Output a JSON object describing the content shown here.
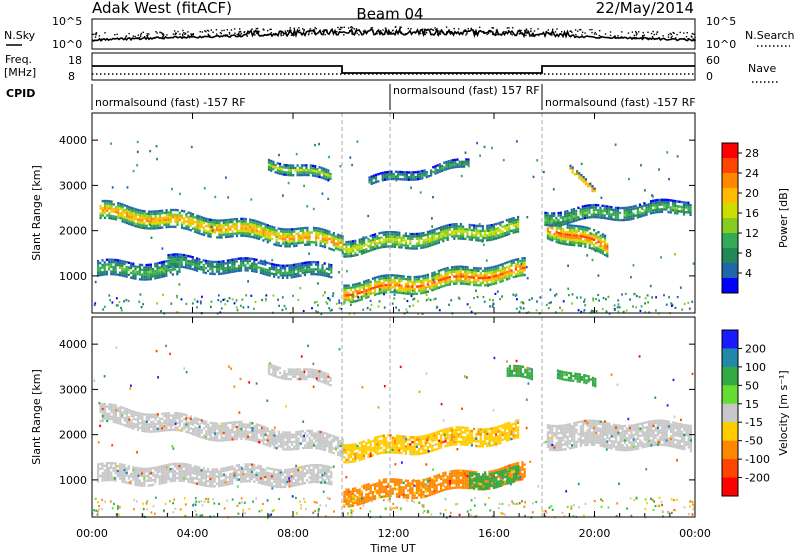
{
  "header": {
    "left": "Adak West (fitACF)",
    "center": "Beam 04",
    "right": "22/May/2014"
  },
  "noise_panel": {
    "left_label": "N.Sky",
    "right_label": "N.Search",
    "left_ticks": [
      "10^5",
      "10^0"
    ],
    "right_ticks": [
      "10^5",
      "10^0"
    ]
  },
  "freq_panel": {
    "left_label_1": "Freq.",
    "left_label_2": "[MHz]",
    "right_label": "Nave",
    "left_ticks": [
      "18",
      "8"
    ],
    "right_ticks": [
      "60",
      "0"
    ]
  },
  "cpid_panel": {
    "label": "CPID",
    "segments": [
      "normalsound (fast) -157 RF",
      "normalsound (fast) 157 RF",
      "normalsound (fast) -157 RF"
    ]
  },
  "x_axis": {
    "ticks": [
      "00:00",
      "04:00",
      "08:00",
      "12:00",
      "16:00",
      "20:00",
      "00:00"
    ],
    "label": "Time UT"
  },
  "power_colorbar": {
    "label": "Power [dB]",
    "ticks": [
      "28",
      "24",
      "20",
      "16",
      "12",
      "8",
      "4"
    ],
    "colors": [
      "#ff0000",
      "#ff4400",
      "#ff8800",
      "#ffbb00",
      "#ccdd00",
      "#88cc22",
      "#33aa55",
      "#228855",
      "#2266aa",
      "#0000ff"
    ]
  },
  "velocity_colorbar": {
    "label": "Velocity [m s⁻¹]",
    "ticks": [
      "200",
      "100",
      "50",
      "15",
      "-15",
      "-50",
      "-100",
      "-200"
    ],
    "colors": [
      "#1a1aff",
      "#2288aa",
      "#33aa44",
      "#66dd33",
      "#c8c8c8",
      "#ffcc00",
      "#ff8800",
      "#ff4400",
      "#ff0000"
    ]
  },
  "chart_data": [
    {
      "type": "heatmap",
      "panel": "power",
      "xlabel": "Time UT",
      "ylabel": "Slant Range [km]",
      "xlim_hours": [
        0,
        24
      ],
      "ylim": [
        180,
        4600
      ],
      "yticks": [
        1000,
        2000,
        3000,
        4000
      ],
      "colorbar_range": [
        0,
        30
      ],
      "bands": [
        {
          "t0": 0.3,
          "t1": 10.0,
          "r_start": 2450,
          "r_end": 1750,
          "width": 380,
          "peak": 24
        },
        {
          "t0": 0.2,
          "t1": 3.5,
          "r_start": 1150,
          "r_end": 1150,
          "width": 350,
          "peak": 12
        },
        {
          "t0": 3.0,
          "t1": 9.5,
          "r_start": 1300,
          "r_end": 1100,
          "width": 300,
          "peak": 10
        },
        {
          "t0": 10.0,
          "t1": 17.2,
          "r_start": 650,
          "r_end": 1150,
          "width": 420,
          "peak": 26
        },
        {
          "t0": 10.0,
          "t1": 17.0,
          "r_start": 1650,
          "r_end": 2100,
          "width": 350,
          "peak": 18
        },
        {
          "t0": 18.1,
          "t1": 20.5,
          "r_start": 2100,
          "r_end": 1650,
          "width": 450,
          "peak": 26
        },
        {
          "t0": 18.0,
          "t1": 23.8,
          "r_start": 2300,
          "r_end": 2550,
          "width": 300,
          "peak": 12
        },
        {
          "t0": 7.0,
          "t1": 9.5,
          "r_start": 3500,
          "r_end": 3200,
          "width": 220,
          "peak": 16
        },
        {
          "t0": 11.0,
          "t1": 15.0,
          "r_start": 3100,
          "r_end": 3500,
          "width": 180,
          "peak": 10
        },
        {
          "t0": 19.0,
          "t1": 20.0,
          "r_start": 3400,
          "r_end": 2800,
          "width": 150,
          "peak": 28
        }
      ]
    },
    {
      "type": "heatmap",
      "panel": "velocity",
      "xlabel": "Time UT",
      "ylabel": "Slant Range [km]",
      "xlim_hours": [
        0,
        24
      ],
      "ylim": [
        180,
        4600
      ],
      "yticks": [
        1000,
        2000,
        3000,
        4000
      ],
      "colorbar_ticks": [
        200,
        100,
        50,
        15,
        -15,
        -50,
        -100,
        -200
      ],
      "bands": [
        {
          "t0": 0.3,
          "t1": 10.0,
          "r_start": 2450,
          "r_end": 1750,
          "width": 420,
          "vel": 0
        },
        {
          "t0": 0.2,
          "t1": 9.5,
          "r_start": 1150,
          "r_end": 1100,
          "width": 380,
          "vel": 0
        },
        {
          "t0": 10.0,
          "t1": 17.2,
          "r_start": 650,
          "r_end": 1150,
          "width": 420,
          "vel": -40
        },
        {
          "t0": 10.0,
          "t1": 17.0,
          "r_start": 1650,
          "r_end": 2100,
          "width": 380,
          "vel": -25
        },
        {
          "t0": 15.0,
          "t1": 17.0,
          "r_start": 1000,
          "r_end": 1100,
          "width": 350,
          "vel": 45
        },
        {
          "t0": 18.1,
          "t1": 23.8,
          "r_start": 2000,
          "r_end": 2000,
          "width": 550,
          "vel": 0
        },
        {
          "t0": 16.5,
          "t1": 17.5,
          "r_start": 3400,
          "r_end": 3300,
          "width": 250,
          "vel": 45
        },
        {
          "t0": 18.5,
          "t1": 20.0,
          "r_start": 3400,
          "r_end": 3100,
          "width": 200,
          "vel": 45
        },
        {
          "t0": 7.0,
          "t1": 9.5,
          "r_start": 3500,
          "r_end": 3200,
          "width": 220,
          "vel": 0
        }
      ]
    }
  ]
}
